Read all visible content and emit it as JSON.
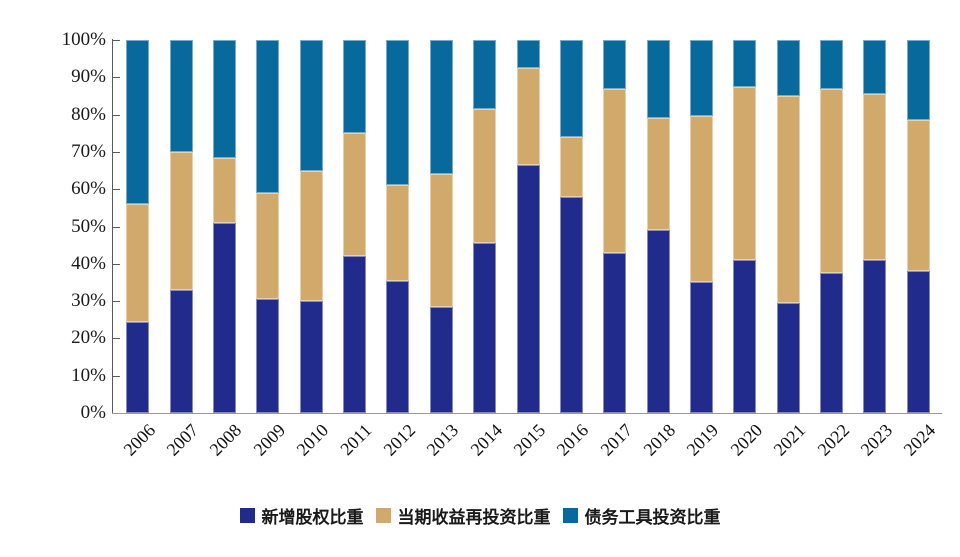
{
  "chart_data": {
    "type": "bar",
    "subtype": "stacked-100-percent",
    "title": "",
    "xlabel": "",
    "ylabel": "",
    "ylim": [
      0,
      100
    ],
    "grid": false,
    "legend_position": "bottom",
    "y_ticks": [
      "0%",
      "10%",
      "20%",
      "30%",
      "40%",
      "50%",
      "60%",
      "70%",
      "80%",
      "90%",
      "100%"
    ],
    "categories": [
      "2006",
      "2007",
      "2008",
      "2009",
      "2010",
      "2011",
      "2012",
      "2013",
      "2014",
      "2015",
      "2016",
      "2017",
      "2018",
      "2019",
      "2020",
      "2021",
      "2022",
      "2023",
      "2024"
    ],
    "series": [
      {
        "name": "新增股权比重",
        "color": "#212B8C",
        "values": [
          24.5,
          33,
          51,
          30.5,
          30,
          42,
          35.5,
          28.5,
          45.5,
          66.5,
          58,
          43,
          49,
          35,
          41,
          29.5,
          37.5,
          41,
          38
        ]
      },
      {
        "name": "当期收益再投资比重",
        "color": "#D1A96B",
        "values": [
          31.5,
          37,
          17.5,
          28.5,
          35,
          33,
          25.5,
          35.5,
          36,
          26,
          16,
          44,
          30,
          44.5,
          46.5,
          55.5,
          49.5,
          44.5,
          40.5
        ]
      },
      {
        "name": "债务工具投资比重",
        "color": "#07699C",
        "values": [
          44,
          30,
          31.5,
          41,
          35,
          25,
          39,
          36,
          18.5,
          7.5,
          26,
          13,
          21,
          20.5,
          12.5,
          15,
          13,
          14.5,
          21.5
        ]
      }
    ]
  }
}
